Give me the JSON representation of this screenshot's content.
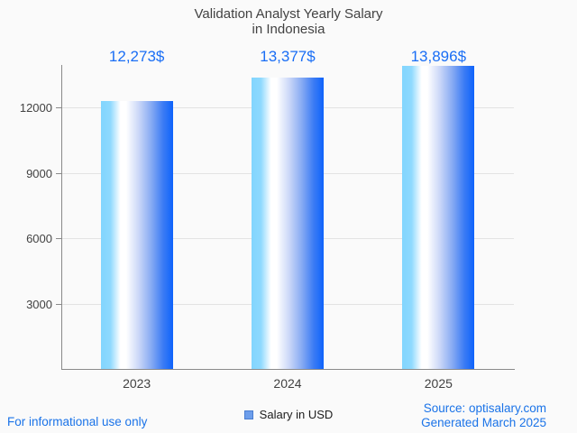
{
  "chart_data": {
    "type": "bar",
    "title": "Validation Analyst Yearly Salary\nin Indonesia",
    "categories": [
      "2023",
      "2024",
      "2025"
    ],
    "series": [
      {
        "name": "Salary in USD",
        "values": [
          12273,
          13377,
          13896
        ]
      }
    ],
    "value_labels": [
      "12,273$",
      "13,377$",
      "13,896$"
    ],
    "xlabel": "",
    "ylabel": "",
    "yticks": [
      3000,
      6000,
      9000,
      12000
    ],
    "ylim": [
      0,
      14000
    ],
    "grid": true,
    "legend_position": "bottom",
    "colors": {
      "bar_gradient_left": "#82d5fe",
      "bar_gradient_mid": "#ffffff",
      "bar_gradient_right": "#0e63fb",
      "value_label": "#1a6ef5",
      "axis": "#8a8a8a",
      "gridline": "#e3e3e3",
      "title_text": "#424242",
      "legend_swatch": "#6d9eeb",
      "footer_link": "#1a73e8",
      "background": "#fafafa"
    }
  },
  "footer": {
    "left": "For informational use only",
    "source": "Source: optisalary.com",
    "generated": "Generated March 2025"
  }
}
